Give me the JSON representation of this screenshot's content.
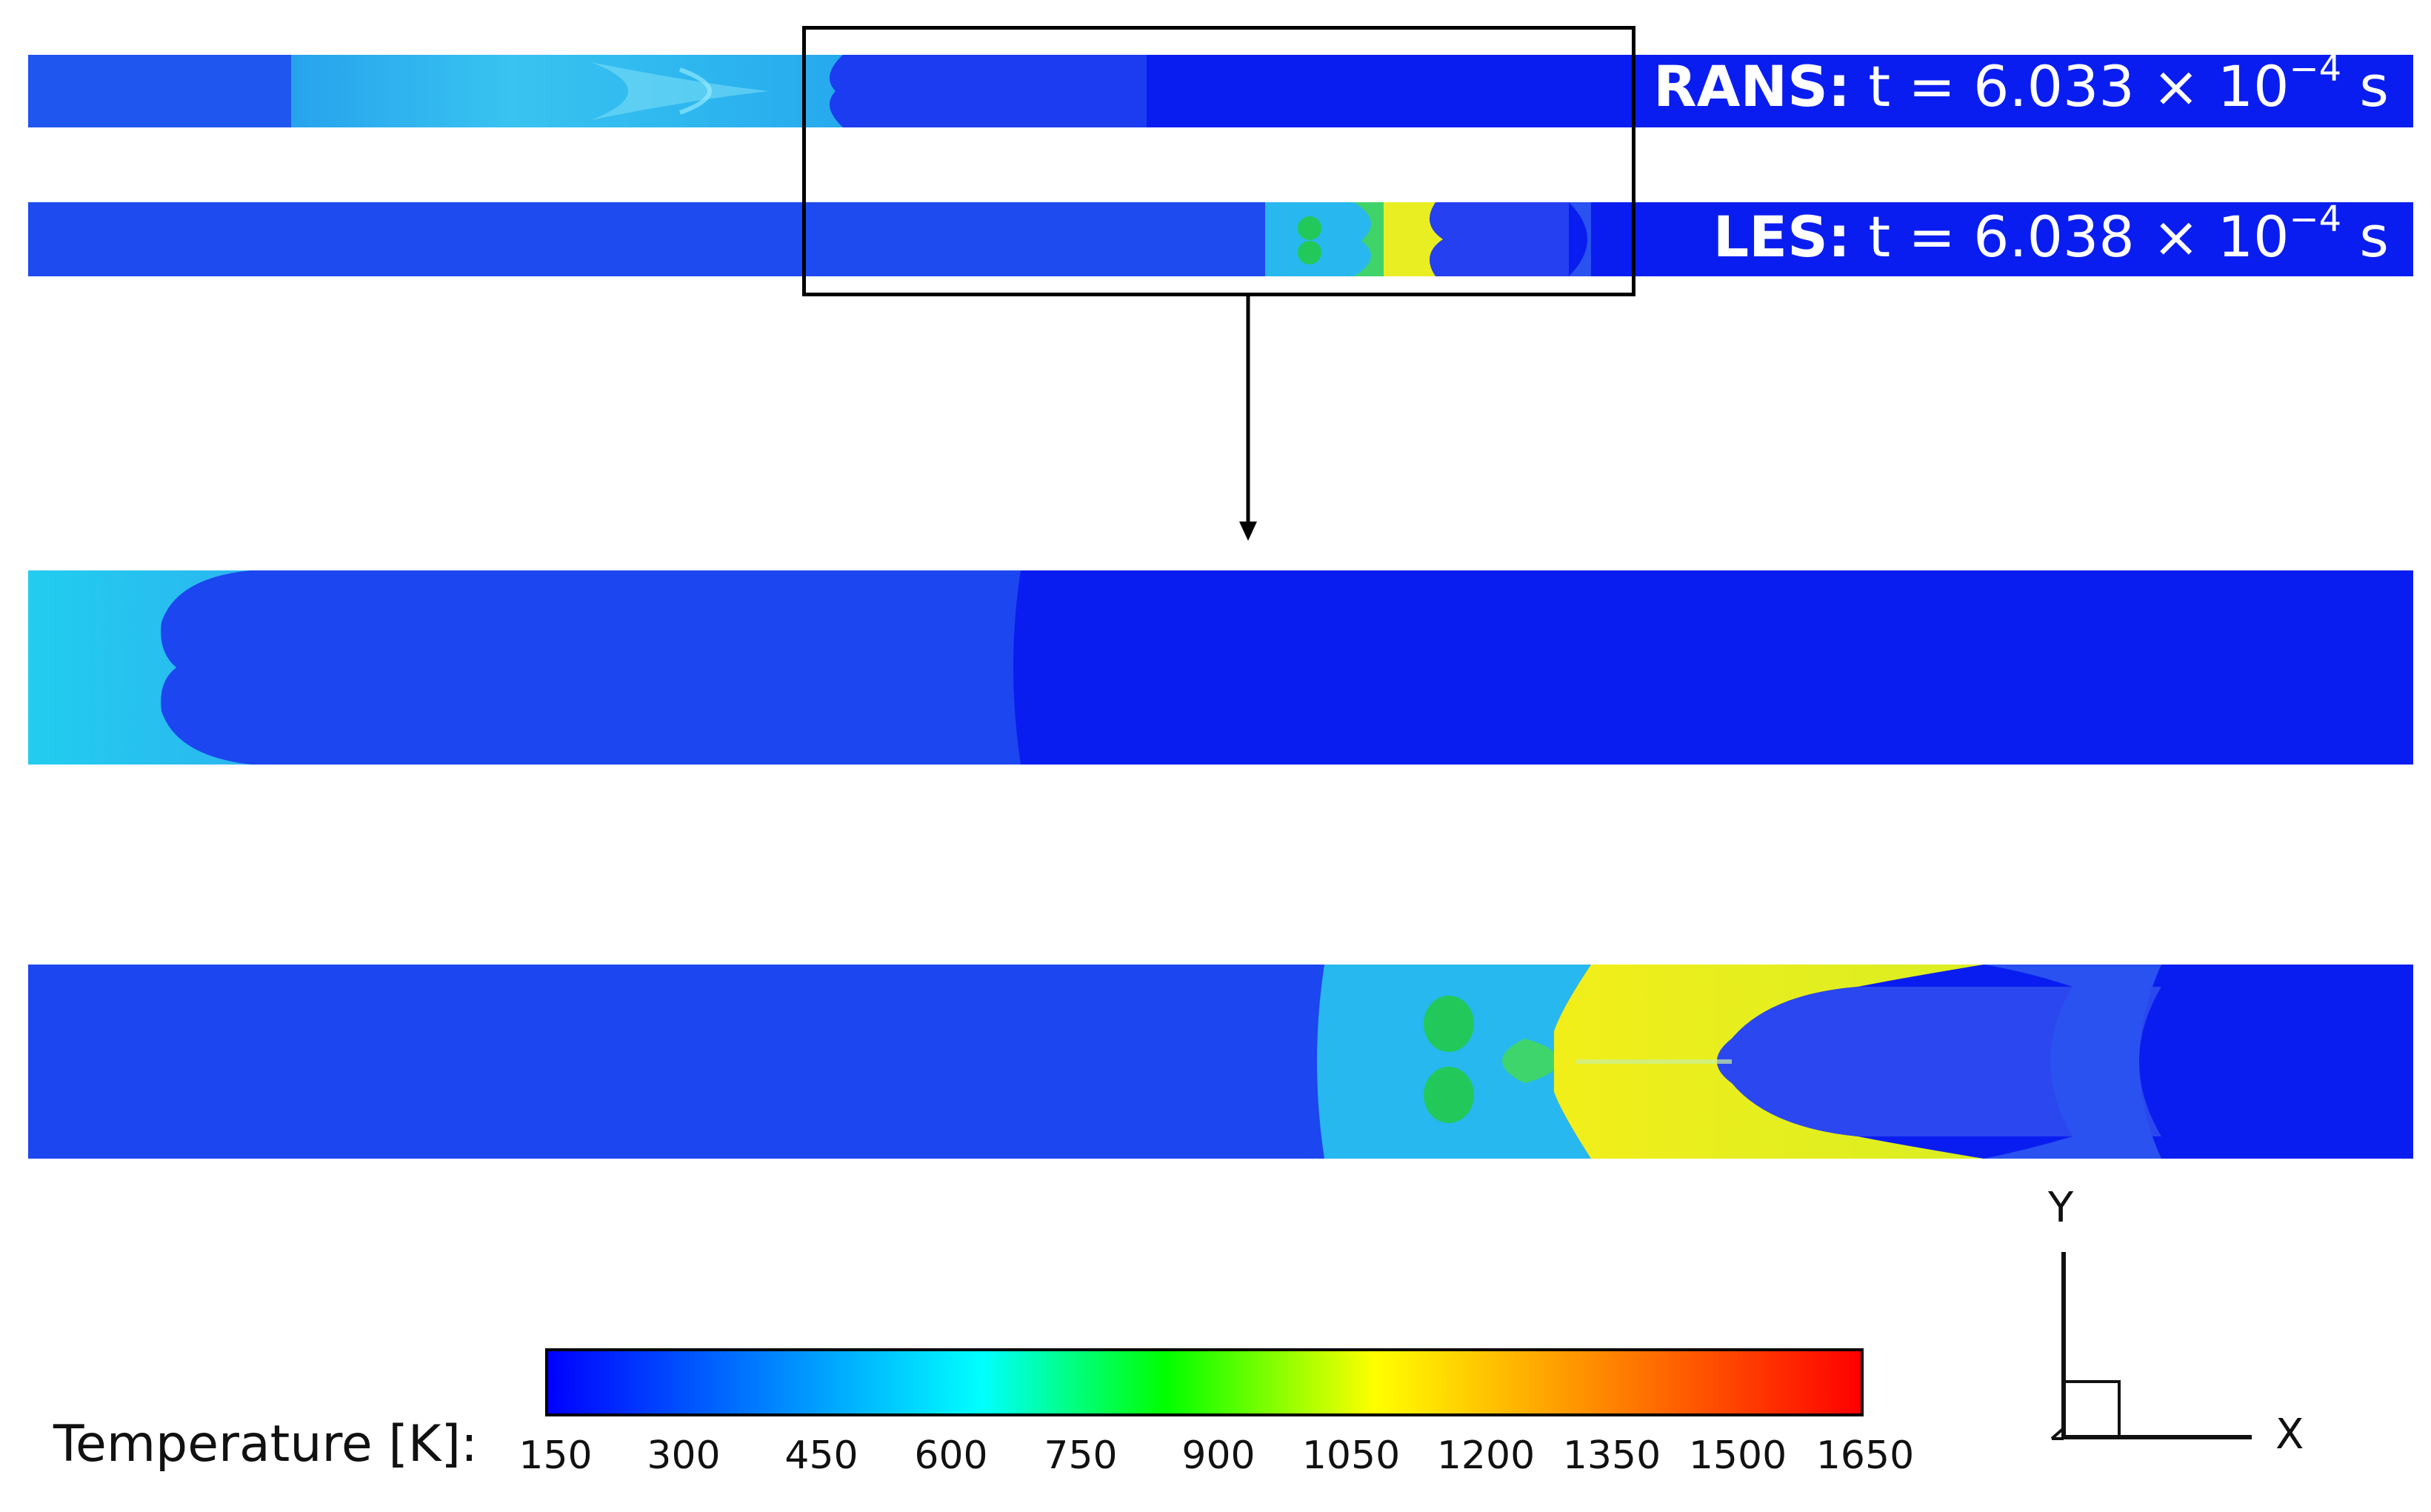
{
  "panels": {
    "rans": {
      "method": "RANS:",
      "time_prefix": "t = 6.033 × 10",
      "exponent": "−4",
      "unit": "s"
    },
    "les": {
      "method": "LES:",
      "time_prefix": "t = 6.038 × 10",
      "exponent": "−4",
      "unit": "s"
    }
  },
  "colorbar": {
    "title": "Temperature [K]:",
    "ticks": [
      "150",
      "300",
      "450",
      "600",
      "750",
      "900",
      "1050",
      "1200",
      "1350",
      "1500",
      "1650"
    ],
    "min": 150,
    "max": 1650,
    "colormap": [
      "#0000ff",
      "#00ffff",
      "#00ff00",
      "#ffff00",
      "#ff0000"
    ]
  },
  "field_colors": {
    "cold_blue": "#0a1cf0",
    "mid_blue": "#1f47f0",
    "light_blue": "#24a8f0",
    "cyan": "#18d2ef",
    "green": "#22c85a",
    "yellow": "#eef01a"
  },
  "axes": {
    "y": "Y",
    "x": "X"
  }
}
